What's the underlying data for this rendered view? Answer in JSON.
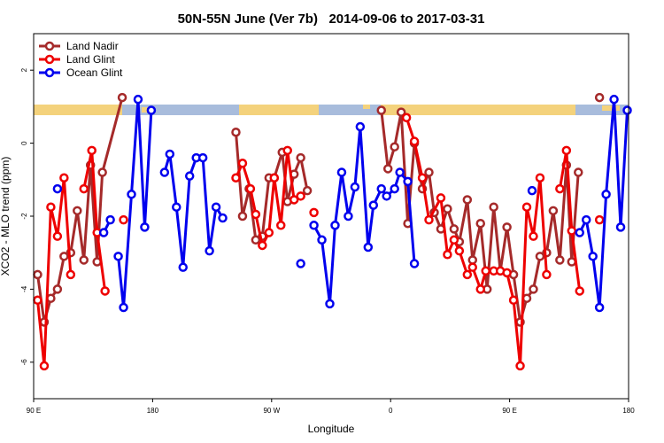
{
  "chart_data": {
    "type": "line",
    "title": "50N-55N June (Ver 7b)   2014-09-06 to 2017-03-31",
    "x_label": "Longitude",
    "y_label": "XCO2 - MLO trend (ppm)",
    "xlim": [
      90,
      540
    ],
    "ylim": [
      -7,
      3
    ],
    "xticks": [
      {
        "value": 90,
        "label": "90 E"
      },
      {
        "value": 180,
        "label": "180"
      },
      {
        "value": 270,
        "label": "90 W"
      },
      {
        "value": 360,
        "label": "0"
      },
      {
        "value": 450,
        "label": "90 E"
      },
      {
        "value": 540,
        "label": "180"
      }
    ],
    "yticks": [
      2,
      0,
      -2,
      -4,
      -6
    ],
    "legend": "top-left",
    "series": [
      {
        "name": "Land Nadir",
        "color": "#a52a2a",
        "x": [
          93,
          98,
          103,
          108,
          113,
          118,
          123,
          128,
          133,
          138,
          142,
          157,
          null,
          243,
          248,
          253,
          258,
          263,
          268,
          272,
          278,
          282,
          287,
          292,
          297,
          null,
          353,
          358,
          363,
          368,
          373,
          378,
          384,
          389,
          393,
          398,
          403,
          408,
          412,
          418,
          422,
          428,
          433,
          438,
          443,
          448,
          453,
          458,
          463,
          468,
          473,
          478,
          483,
          488,
          493,
          497,
          502,
          null,
          518
        ],
        "values": [
          -3.6,
          -4.9,
          -4.25,
          -4.0,
          -3.1,
          -3.0,
          -1.85,
          -3.2,
          -0.6,
          -3.25,
          -0.8,
          1.25,
          null,
          0.3,
          -2.0,
          -1.25,
          -2.65,
          -2.55,
          -0.95,
          -0.95,
          -0.25,
          -1.6,
          -0.85,
          -0.4,
          -1.3,
          null,
          0.9,
          -0.7,
          -0.1,
          0.85,
          -2.2,
          0.0,
          -1.25,
          -0.8,
          -1.9,
          -2.35,
          -1.8,
          -2.35,
          -2.7,
          -1.55,
          -3.2,
          -2.2,
          -4.0,
          -1.75,
          -3.5,
          -2.3,
          -3.6,
          -4.9,
          -4.25,
          -4.0,
          -3.1,
          -3.0,
          -1.85,
          -3.2,
          -0.6,
          -3.25,
          -0.8,
          null,
          1.25
        ]
      },
      {
        "name": "Land Glint",
        "color": "#ee0000",
        "x": [
          93,
          98,
          103,
          108,
          113,
          118,
          null,
          128,
          134,
          138,
          144,
          null,
          158,
          null,
          243,
          248,
          254,
          258,
          263,
          268,
          272,
          277,
          282,
          287,
          292,
          null,
          302,
          null,
          372,
          378,
          384,
          389,
          398,
          403,
          408,
          412,
          418,
          422,
          428,
          432,
          438,
          443,
          448,
          453,
          458,
          463,
          468,
          473,
          478,
          null,
          488,
          493,
          497,
          503,
          null,
          518
        ],
        "values": [
          -4.3,
          -6.1,
          -1.75,
          -2.55,
          -0.95,
          -3.6,
          null,
          -1.25,
          -0.2,
          -2.45,
          -4.05,
          null,
          -2.1,
          null,
          -0.95,
          -0.55,
          -1.25,
          -1.95,
          -2.8,
          -2.45,
          -0.95,
          -2.25,
          -0.2,
          -1.55,
          -1.45,
          null,
          -1.9,
          null,
          0.7,
          0.05,
          -0.95,
          -2.1,
          -1.5,
          -3.05,
          -2.65,
          -2.95,
          -3.6,
          -3.4,
          -4.0,
          -3.5,
          -3.5,
          -3.5,
          -3.55,
          -4.3,
          -6.1,
          -1.75,
          -2.55,
          -0.95,
          -3.6,
          null,
          -1.25,
          -0.2,
          -2.4,
          -4.05,
          null,
          -2.1
        ]
      },
      {
        "name": "Ocean Glint",
        "color": "#0000ee",
        "x": [
          108,
          null,
          143,
          148,
          null,
          154,
          158,
          164,
          169,
          174,
          179,
          null,
          189,
          193,
          198,
          203,
          208,
          213,
          218,
          223,
          228,
          233,
          null,
          292,
          null,
          302,
          308,
          314,
          318,
          323,
          328,
          333,
          337,
          343,
          347,
          353,
          357,
          363,
          367,
          373,
          378,
          null,
          467,
          null,
          503,
          508,
          513,
          518,
          523,
          529,
          534,
          539
        ],
        "values": [
          -1.25,
          null,
          -2.45,
          -2.1,
          null,
          -3.1,
          -4.5,
          -1.4,
          1.2,
          -2.3,
          0.9,
          null,
          -0.8,
          -0.3,
          -1.75,
          -3.4,
          -0.9,
          -0.4,
          -0.4,
          -2.95,
          -1.75,
          -2.05,
          null,
          -3.3,
          null,
          -2.25,
          -2.65,
          -4.4,
          -2.25,
          -0.8,
          -2.0,
          -1.2,
          0.45,
          -2.85,
          -1.7,
          -1.25,
          -1.45,
          -1.25,
          -0.8,
          -1.05,
          -3.3,
          null,
          -1.3,
          null,
          -2.45,
          -2.1,
          -3.1,
          -4.5,
          -1.4,
          1.2,
          -2.3,
          0.9
        ]
      }
    ]
  }
}
